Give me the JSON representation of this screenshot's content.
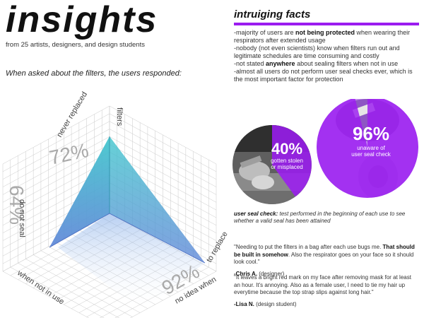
{
  "header": {
    "title": "insights",
    "subtitle": "from 25 artists, designers, and design students"
  },
  "survey": {
    "question": "When asked about the filters, the users responded:",
    "axes": {
      "top_label": "filters",
      "top_left_label": "never replaced",
      "top_left_value": "72%",
      "left_label": "do not seal",
      "left_value": "64%",
      "bottom_left_label": "when not in use",
      "bottom_right_label": "no idea when",
      "bottom_right_value": "92%",
      "right_label": "to replace"
    },
    "colors": {
      "fill_top": "#3fc6cc",
      "fill_bottom": "#5f86d8",
      "grid": "#c9c9c9"
    }
  },
  "facts": {
    "title": "intruiging facts",
    "accent": "#9b1cf0",
    "items": [
      {
        "pre": "-majority of users are ",
        "bold": "not being protected",
        "post": " when wearing their respirators after extended usage"
      },
      {
        "pre": "-nobody (not even scientists) know when filters run out and legitimate schedules are time consuming and costly",
        "bold": "",
        "post": ""
      },
      {
        "pre": "-not stated ",
        "bold": "anywhere",
        "post": " about sealing filters when not in use"
      },
      {
        "pre": "-almost all users do not perform user seal checks ever, which is the most important factor for protection",
        "bold": "",
        "post": ""
      }
    ]
  },
  "stats": [
    {
      "value": "40%",
      "caption_line1": "gotten stolen",
      "caption_line2": "or misplaced",
      "fraction": 0.4
    },
    {
      "value": "96%",
      "caption_line1": "unaware of",
      "caption_line2": "user seal check",
      "fraction": 0.96
    }
  ],
  "definition": {
    "term": "user seal check:",
    "text": " test performed in the beginning of each use to see whether a valid seal has been attained"
  },
  "quotes": [
    {
      "pre": "\"Needing to put the filters in a bag after each use bugs me.  ",
      "bold": "That should be built in somehow",
      "post": ".  Also the respirator goes on your face so it should look cool.\"",
      "name": "-Chris A.",
      "role": " (designer)"
    },
    {
      "pre": "\"It leaves a bright red mark on my face after removing mask for at least an hour.  It's annoying.  Also as a female user, I need to tie my hair up everytime because the top strap slips against long hair.\"",
      "bold": "",
      "post": "",
      "name": "-Lisa N.",
      "role": " (design student)"
    }
  ]
}
